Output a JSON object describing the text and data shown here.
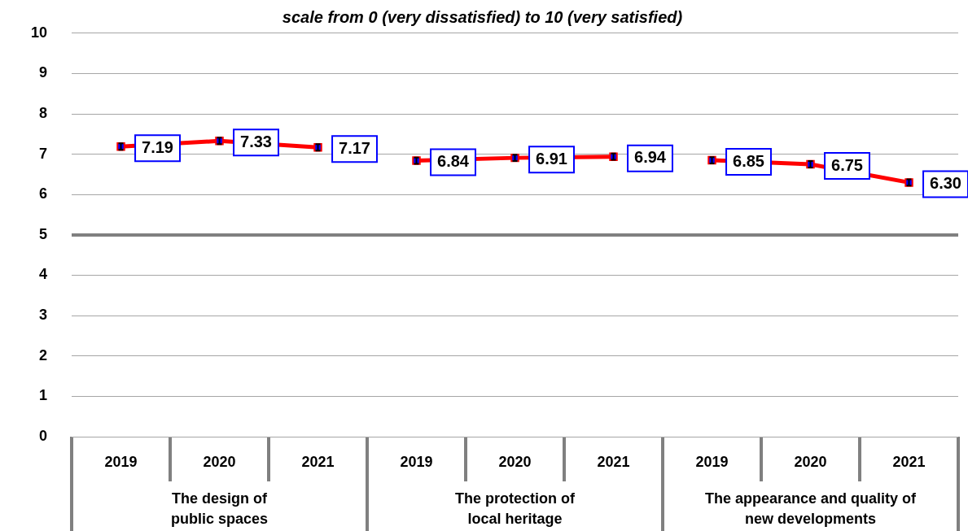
{
  "chart_data": {
    "type": "line",
    "title": "scale from 0 (very dissatisfied) to 10 (very satisfied)",
    "categories": [
      "2019",
      "2020",
      "2021",
      "2019",
      "2020",
      "2021",
      "2019",
      "2020",
      "2021"
    ],
    "series": [
      {
        "color": "#ff0000",
        "colors": [
          "#0000ff",
          "#0000ff",
          "#0000ff",
          null,
          null,
          null,
          null,
          null,
          null
        ],
        "values": [
          7.19,
          7.33,
          7.17,
          null,
          null,
          null,
          null,
          null,
          null
        ],
        "errors": [
          0.08,
          0.08,
          0.08,
          null,
          null,
          null,
          null,
          null,
          null
        ],
        "value_labels": [
          "7.19",
          "7.33",
          "7.17",
          null,
          null,
          null,
          null,
          null,
          null
        ]
      },
      {
        "color": "#ff0000",
        "colors": [
          null,
          null,
          null,
          "#0000ff",
          "#0000ff",
          "#0000ff",
          null,
          null,
          null
        ],
        "values": [
          null,
          null,
          null,
          6.84,
          6.91,
          6.94,
          null,
          null,
          null
        ],
        "errors": [
          null,
          null,
          null,
          0.08,
          0.08,
          0.08,
          null,
          null,
          null
        ],
        "value_labels": [
          null,
          null,
          null,
          "6.84",
          "6.91",
          "6.94",
          null,
          null,
          null
        ]
      },
      {
        "color": "#ff0000",
        "colors": [
          null,
          null,
          null,
          null,
          null,
          null,
          "#0000ff",
          "#0000ff",
          "#0000ff"
        ],
        "values": [
          null,
          null,
          null,
          null,
          null,
          null,
          6.85,
          6.75,
          6.3
        ],
        "errors": [
          null,
          null,
          null,
          null,
          null,
          null,
          0.08,
          0.08,
          0.08
        ],
        "value_labels": [
          null,
          null,
          null,
          null,
          null,
          null,
          "6.85",
          "6.75",
          "6.30"
        ]
      }
    ],
    "annotations": [
      "The design of public spaces",
      "The protection of local heritage",
      "The appearance and quality of new developments"
    ],
    "ref_lines": [
      {
        "axis": "y",
        "value": 5,
        "color": "#808080"
      }
    ],
    "ylim": [
      0,
      10
    ],
    "yticks": [
      0,
      1,
      2,
      3,
      4,
      5,
      6,
      7,
      8,
      9,
      10
    ],
    "grid": "y",
    "legend": false,
    "marker": "square",
    "line_style": "solid"
  }
}
